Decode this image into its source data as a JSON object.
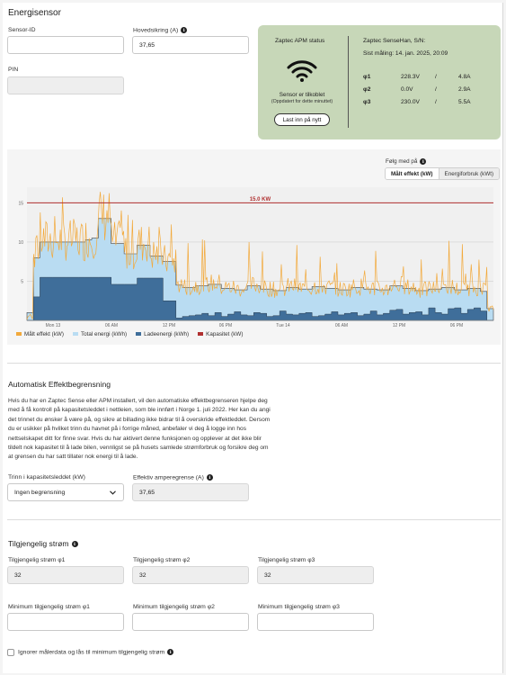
{
  "section_title": "Energisensor",
  "sensor_id": {
    "label": "Sensor-ID",
    "value": ""
  },
  "main_fuse": {
    "label": "Hovedsikring (A)",
    "value": "37,65"
  },
  "pin": {
    "label": "PIN",
    "value": ""
  },
  "apm": {
    "title": "Zaptec APM status",
    "status_text": "Sensor er tilkoblet",
    "status_sub": "(Oppdatert for dette minuttet)",
    "login_button": "Last inn på nytt",
    "sense_title": "Zaptec SenseHan, S/N:",
    "last_measure": "Sist måling: 14. jan. 2025, 20:09",
    "phases": [
      {
        "name": "φ1",
        "voltage": "228.3V",
        "sep": "/",
        "current": "4.8A"
      },
      {
        "name": "φ2",
        "voltage": "0.0V",
        "sep": "/",
        "current": "2.9A"
      },
      {
        "name": "φ3",
        "voltage": "230.0V",
        "sep": "/",
        "current": "5.5A"
      }
    ]
  },
  "chart_controls": {
    "follow_label": "Følg med på",
    "tabs": [
      "Målt effekt (kW)",
      "Energiforbruk (kWt)"
    ]
  },
  "chart_data": {
    "type": "line",
    "title": "",
    "x_ticks": [
      "Mon 13",
      "06 AM",
      "12 PM",
      "06 PM",
      "Tue 14",
      "06 AM",
      "12 PM",
      "06 PM"
    ],
    "y_ticks": [
      5,
      10,
      15
    ],
    "ylim": [
      0,
      17
    ],
    "capacity_line": {
      "label": "15.0 KW",
      "value": 15
    },
    "legend": [
      "Målt effekt (kW)",
      "Total energi (kWh)",
      "Ladeenergi (kWh)",
      "Kapasitet (kW)"
    ],
    "colors": {
      "measured": "#f2a93b",
      "total": "#b9dcf2",
      "charge": "#3f6e9a",
      "capacity": "#b03030"
    },
    "series": [
      {
        "name": "Total energi (kWh)",
        "values": [
          1,
          8,
          10,
          10,
          10,
          10,
          10,
          10,
          10,
          10.3,
          10.5,
          13,
          13,
          9.8,
          9.8,
          8.5,
          8.5,
          9.6,
          9.6,
          8.2,
          8.2,
          7.5,
          7.5,
          4.5,
          4.2,
          4.2,
          4.4,
          4.4,
          4.6,
          4.6,
          4.1,
          4.1,
          3.9,
          3.9,
          4.4,
          4.4,
          4.0,
          4.0,
          3.8,
          3.8,
          4.2,
          4.2,
          4.0,
          4.0,
          4.3,
          4.3,
          4.1,
          4.1,
          3.9,
          3.9,
          4.2,
          4.2,
          4.0,
          4.0,
          3.9,
          3.9,
          4.4,
          4.4,
          4.1,
          4.1,
          3.8,
          3.8,
          4.0,
          4.0,
          4.2,
          4.2,
          3.9,
          3.9,
          4.1,
          4.1,
          3.7,
          1.5
        ]
      },
      {
        "name": "Ladeenergi (kWh)",
        "values": [
          0,
          3,
          5.5,
          5.5,
          5.5,
          5.5,
          5.5,
          5.5,
          5.5,
          5.5,
          5.5,
          5.5,
          5.5,
          4.6,
          4.6,
          4.6,
          4.6,
          5.4,
          5.4,
          5.4,
          5.4,
          2.5,
          2.5,
          0.3,
          0.5,
          0.6,
          0.7,
          0.9,
          0.6,
          1.0,
          0.5,
          0.8,
          1.1,
          0.7,
          0.6,
          1.0,
          0.9,
          0.5,
          0.6,
          1.2,
          0.8,
          0.7,
          0.9,
          1.0,
          0.5,
          0.6,
          0.8,
          1.1,
          0.7,
          0.9,
          1.0,
          0.6,
          0.8,
          1.2,
          0.7,
          0.9,
          1.3,
          1.4,
          0.8,
          1.0,
          1.1,
          0.7,
          1.6,
          1.0,
          0.8,
          1.5,
          1.6,
          0.9,
          1.4,
          1.6,
          1.2,
          0
        ]
      }
    ]
  },
  "auto_section": {
    "title": "Automatisk Effektbegrensning",
    "paragraph": [
      "Hvis du har en Zaptec Sense eller APM installert, vil den automatiske effektbegrenseren hjelpe deg",
      "med å få kontroll på kapasitetsleddet i nettleien, som ble innført i Norge 1. juli 2022. Her kan du angi",
      "det trinnet du ønsker å være på, og sikre at billading ikke bidrar til å overskride effektleddet. Dersom",
      "du er usikker på hvilket trinn du havnet på i forrige måned, anbefaler vi deg å logge inn hos",
      "nettselskapet ditt for finne svar. Hvis du har aktivert denne funksjonen og opplever at det ikke blir",
      "tildelt nok kapasitet til å lade bilen, vennligst se på husets samlede strømforbruk og forsikre deg om",
      "at grensen du har satt tillater nok energi til å lade."
    ],
    "step_label": "Trinn i kapasitetsleddet (kW)",
    "step_value": "Ingen begrensning",
    "effective_label": "Effektiv amperegrense (A)",
    "effective_value": "37,65"
  },
  "available": {
    "title": "Tilgjengelig strøm",
    "phases": [
      {
        "label": "Tilgjengelig strøm φ1",
        "value": "32"
      },
      {
        "label": "Tilgjengelig strøm φ2",
        "value": "32"
      },
      {
        "label": "Tilgjengelig strøm φ3",
        "value": "32"
      }
    ],
    "min_phases": [
      {
        "label": "Minimum tilgjengelig strøm φ1",
        "value": ""
      },
      {
        "label": "Minimum tilgjengelig strøm φ2",
        "value": ""
      },
      {
        "label": "Minimum tilgjengelig strøm φ3",
        "value": ""
      }
    ],
    "ignore_label": "Ignorer målerdata og lås til minimum tilgjengelig strøm"
  }
}
